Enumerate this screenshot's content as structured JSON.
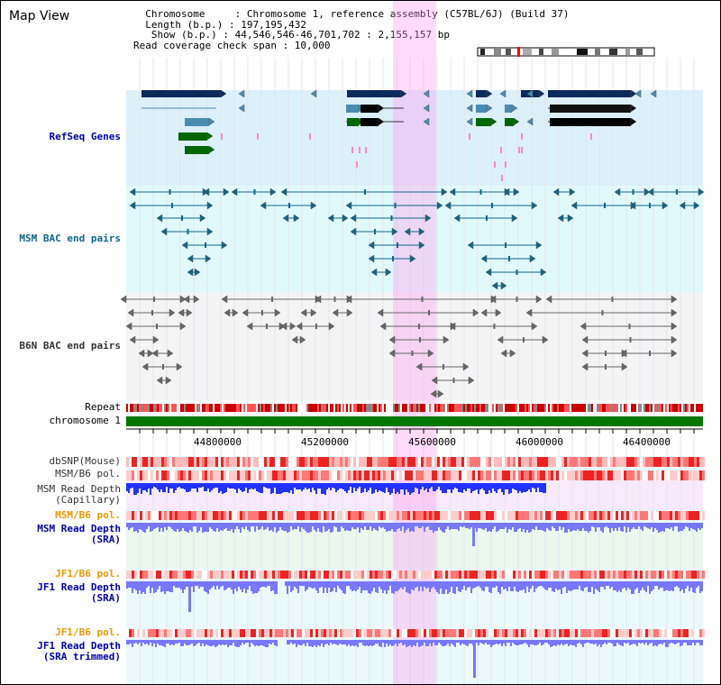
{
  "header": {
    "app_title": "Map View",
    "info_rows": [
      "  Chromosome     : Chromosome 1, reference assembly (C57BL/6J) (Build 37)",
      "  Length (b.p.) : 197,195,432",
      "   Show (b.p.) : 44,546,546-46,701,702 : 2,155,157 bp",
      "Read coverage check span : 10,000"
    ]
  },
  "tracks": {
    "refseq": "RefSeq Genes",
    "msm_bac": "MSM BAC end pairs",
    "b6n_bac": "B6N BAC end pairs",
    "repeat": "Repeat",
    "chromosome": "chromosome 1",
    "dbsnp": "dbSNP(Mouse)",
    "msm_pol": "MSM/B6 pol.",
    "msm_depth_cap_1": "MSM Read Depth",
    "msm_depth_cap_2": "(Capillary)",
    "msm_pol_sra": "MSM/B6 pol.",
    "msm_depth_sra_1": "MSM Read Depth",
    "msm_depth_sra_2": "(SRA)",
    "jf1_pol": "JF1/B6 pol.",
    "jf1_depth_1": "JF1 Read Depth",
    "jf1_depth_2": "(SRA)",
    "jf1_pol_trim": "JF1/B6 pol.",
    "jf1_trim_1": "JF1 Read Depth",
    "jf1_trim_2": "(SRA trimmed)"
  },
  "axis": {
    "tick_labels": [
      "44800000",
      "45200000",
      "45600000",
      "46000000",
      "46400000"
    ]
  },
  "colors": {
    "label_blue": "#0000aa",
    "label_teal": "#116688",
    "label_gray": "#333333",
    "label_orange": "#ee9900",
    "gene_navy": "#0a2a5a",
    "gene_steel": "#4a8cb0",
    "gene_green": "#006600",
    "chromosome_green": "#007700",
    "highlight_pink": "#ff99ee",
    "depth_blue": "#2233ff",
    "depth_lavender": "#7777ff"
  }
}
